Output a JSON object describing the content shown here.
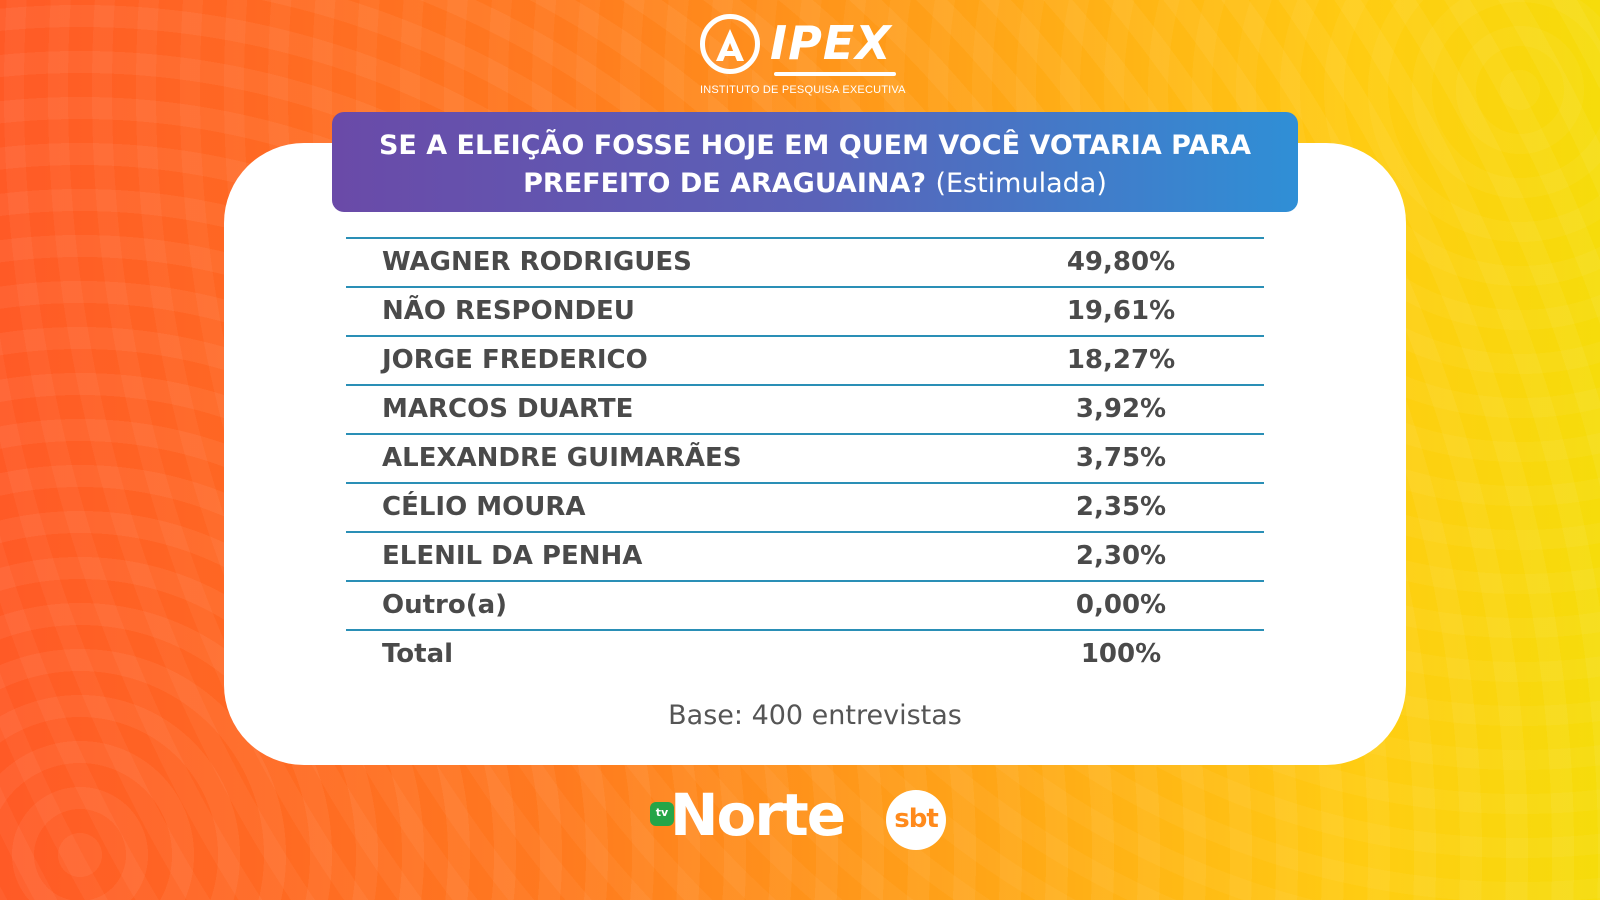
{
  "header": {
    "logo_text": "IPEX",
    "logo_subtitle": "INSTITUTO DE PESQUISA EXECUTIVA"
  },
  "title": {
    "line1": "SE A ELEIÇÃO FOSSE HOJE EM QUEM VOCÊ VOTARIA PARA",
    "line2": "PREFEITO DE ARAGUAINA?",
    "sub": "(Estimulada)"
  },
  "table": {
    "rows": [
      {
        "name": "WAGNER RODRIGUES",
        "value": "49,80%"
      },
      {
        "name": "NÃO RESPONDEU",
        "value": "19,61%"
      },
      {
        "name": "JORGE FREDERICO",
        "value": "18,27%"
      },
      {
        "name": "MARCOS DUARTE",
        "value": "3,92%"
      },
      {
        "name": "ALEXANDRE GUIMARÃES",
        "value": "3,75%"
      },
      {
        "name": "CÉLIO MOURA",
        "value": "2,35%"
      },
      {
        "name": "ELENIL DA PENHA",
        "value": "2,30%"
      },
      {
        "name": "Outro(a)",
        "value": "0,00%"
      },
      {
        "name": "Total",
        "value": "100%"
      }
    ]
  },
  "footer": {
    "base_note": "Base: 400 entrevistas",
    "brand_tv": "tv",
    "brand_norte": "Norte",
    "brand_sbt": "sbt"
  },
  "colors": {
    "title_gradient_start": "#6a4aa8",
    "title_gradient_end": "#2f8fd6",
    "row_divider": "#2a8fb6",
    "text": "#4a4a4a"
  }
}
